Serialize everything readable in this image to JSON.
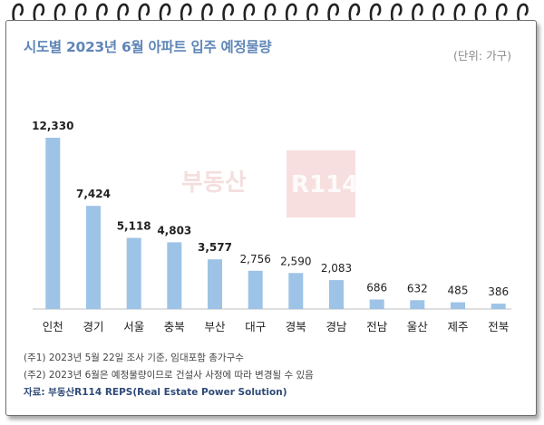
{
  "chart_data": {
    "type": "bar",
    "title": "시도별 2023년 6월 아파트 입주 예정물량",
    "unit_label": "(단위: 가구)",
    "categories": [
      "인천",
      "경기",
      "서울",
      "충북",
      "부산",
      "대구",
      "경북",
      "경남",
      "전남",
      "울산",
      "제주",
      "전북"
    ],
    "values": [
      12330,
      7424,
      5118,
      4803,
      3577,
      2756,
      2590,
      2083,
      686,
      632,
      485,
      386
    ],
    "value_labels": [
      "12,330",
      "7,424",
      "5,118",
      "4,803",
      "3,577",
      "2,756",
      "2,590",
      "2,083",
      "686",
      "632",
      "485",
      "386"
    ],
    "bold_value_labels": [
      true,
      true,
      true,
      true,
      true,
      false,
      false,
      false,
      false,
      false,
      false,
      false
    ],
    "ylim": [
      0,
      12330
    ],
    "xlabel": "",
    "ylabel": "",
    "grid": false,
    "legend": "none",
    "bar_color": "#9dc3e6"
  },
  "notes": {
    "note1": "(주1) 2023년 5월 22일 조사 기준, 임대포함 총가구수",
    "note2": "(주2) 2023년 6월은 예정물량이므로 건설사 사정에 따라 변경될 수 있음",
    "source": "자료: 부동산R114 REPS(Real Estate Power Solution)"
  },
  "watermark": {
    "text_left": "부동산",
    "text_box": "R114",
    "color": "#e8a3a3"
  }
}
